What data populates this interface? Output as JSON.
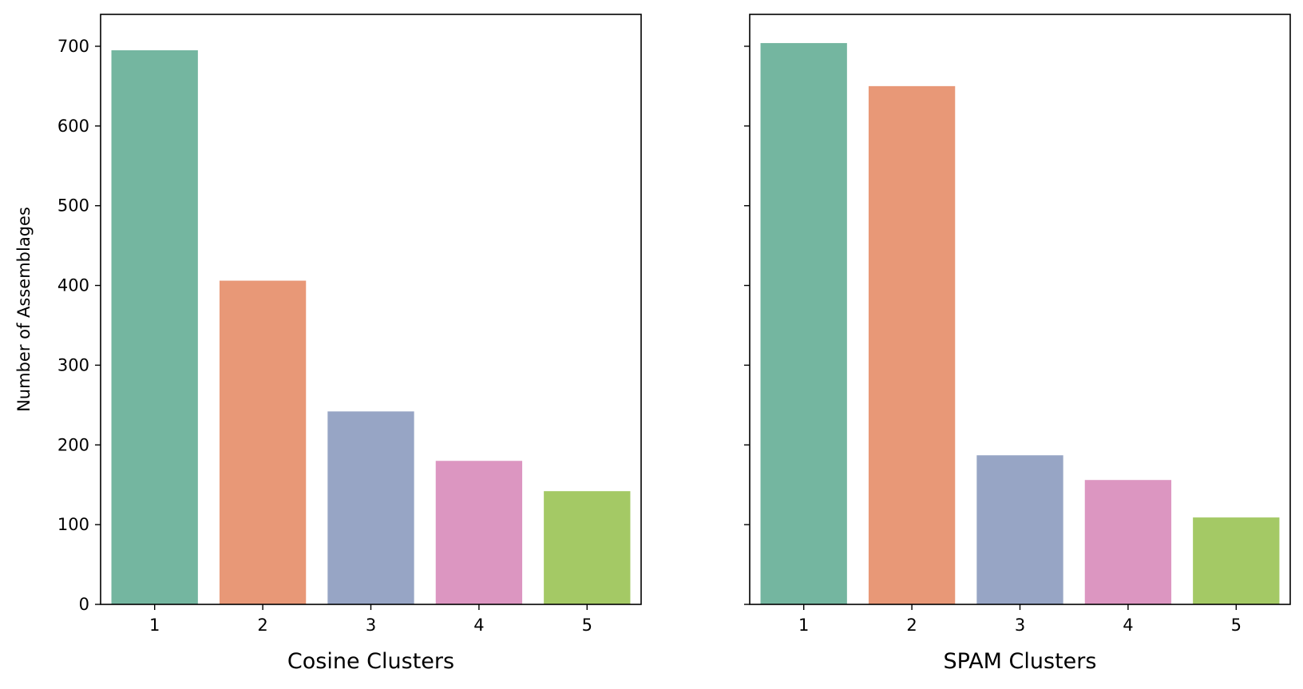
{
  "chart_data": [
    {
      "type": "bar",
      "categories": [
        "1",
        "2",
        "3",
        "4",
        "5"
      ],
      "values": [
        695,
        406,
        242,
        180,
        142
      ],
      "colors": [
        "#74b6a0",
        "#e89877",
        "#97a5c5",
        "#dc96c1",
        "#a4c965"
      ],
      "title": "",
      "xlabel": "Cosine Clusters",
      "ylabel": "Number of Assemblages",
      "ylim": [
        0,
        740
      ],
      "yticks": [
        "0",
        "100",
        "200",
        "300",
        "400",
        "500",
        "600",
        "700"
      ],
      "grid": false,
      "show_y_tick_labels": true
    },
    {
      "type": "bar",
      "categories": [
        "1",
        "2",
        "3",
        "4",
        "5"
      ],
      "values": [
        704,
        650,
        187,
        156,
        109
      ],
      "colors": [
        "#74b6a0",
        "#e89877",
        "#97a5c5",
        "#dc96c1",
        "#a4c965"
      ],
      "title": "",
      "xlabel": "SPAM Clusters",
      "ylabel": "",
      "ylim": [
        0,
        740
      ],
      "yticks": [
        "0",
        "100",
        "200",
        "300",
        "400",
        "500",
        "600",
        "700"
      ],
      "grid": false,
      "show_y_tick_labels": false
    }
  ]
}
